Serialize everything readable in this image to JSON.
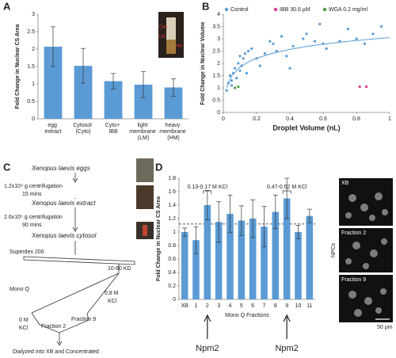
{
  "panel_labels": [
    "A",
    "B",
    "C",
    "D"
  ],
  "chart_data": [
    {
      "type": "bar",
      "ylabel": "Fold Change in Nuclear CS Area",
      "categories": [
        "egg extract",
        "Cytosol (Cyto)",
        "Cyto+ IBB",
        "light membrane (LM)",
        "heavy membrane (HM)"
      ],
      "values": [
        2.07,
        1.52,
        1.08,
        0.98,
        0.9
      ],
      "errors": [
        0.57,
        0.5,
        0.22,
        0.37,
        0.25
      ],
      "color": "#5b9bd5",
      "ylim": [
        0,
        3
      ],
      "yticks": [
        0,
        0.5,
        1,
        1.5,
        2,
        2.5,
        3
      ],
      "inset_labels": [
        "Cyto",
        "LM",
        "HM"
      ]
    },
    {
      "type": "scatter",
      "xlabel": "Droplet Volume (nL)",
      "ylabel": "Fold Change in Nuclear Volume",
      "xlim": [
        0,
        1
      ],
      "xticks": [
        0,
        0.2,
        0.4,
        0.6,
        0.8,
        1
      ],
      "ylim": [
        0,
        4
      ],
      "yticks": [
        0,
        0.5,
        1,
        1.5,
        2,
        2.5,
        3,
        3.5,
        4
      ],
      "legend": "top",
      "series": [
        {
          "name": "Control",
          "color": "#5b9bd5",
          "x": [
            0.02,
            0.03,
            0.04,
            0.05,
            0.05,
            0.06,
            0.07,
            0.08,
            0.09,
            0.1,
            0.1,
            0.11,
            0.12,
            0.13,
            0.14,
            0.15,
            0.17,
            0.2,
            0.22,
            0.25,
            0.28,
            0.3,
            0.32,
            0.35,
            0.38,
            0.4,
            0.42,
            0.48,
            0.5,
            0.55,
            0.58,
            0.6,
            0.62,
            0.7,
            0.75,
            0.8,
            0.85,
            0.9,
            0.95
          ],
          "values": [
            0.9,
            1.2,
            1.5,
            1.3,
            1.1,
            1.6,
            1.8,
            1.4,
            2.0,
            1.7,
            2.3,
            1.9,
            2.2,
            2.4,
            1.6,
            2.5,
            2.6,
            2.2,
            1.9,
            2.4,
            2.9,
            2.8,
            2.5,
            3.1,
            2.3,
            1.8,
            2.7,
            3.0,
            3.2,
            2.9,
            3.6,
            2.8,
            2.6,
            2.9,
            3.4,
            3.0,
            2.8,
            3.2,
            3.5
          ]
        },
        {
          "name": "IBB 30.6 µM",
          "color": "#d6398a",
          "x": [
            0.82,
            0.86
          ],
          "values": [
            1.05,
            1.05
          ]
        },
        {
          "name": "WGA 0.2 mg/ml",
          "color": "#4e9a3f",
          "x": [
            0.07,
            0.09
          ],
          "values": [
            1.0,
            1.05
          ]
        }
      ],
      "trendline": {
        "color": "#5b9bd5",
        "x": [
          0.02,
          0.05,
          0.1,
          0.15,
          0.2,
          0.3,
          0.4,
          0.5,
          0.6,
          0.7,
          0.8,
          0.9,
          1
        ],
        "values": [
          1.02,
          1.49,
          1.85,
          2.06,
          2.21,
          2.42,
          2.57,
          2.69,
          2.78,
          2.86,
          2.93,
          2.99,
          3.05
        ]
      }
    },
    {
      "type": "bar",
      "ylabel": "Fold Change in Nuclear CS Area",
      "xlabel": "Mono Q Fractions",
      "categories": [
        "XB",
        "1",
        "2",
        "3",
        "4",
        "5",
        "6",
        "7",
        "8",
        "9",
        "10",
        "11"
      ],
      "values": [
        1.0,
        0.88,
        1.4,
        1.15,
        1.27,
        1.17,
        1.2,
        1.08,
        1.3,
        1.5,
        1.0,
        1.24
      ],
      "errors": [
        0.06,
        0.2,
        0.22,
        0.3,
        0.28,
        0.22,
        0.28,
        0.3,
        0.25,
        0.3,
        0.1,
        0.1
      ],
      "color": "#5b9bd5",
      "ylim": [
        0,
        1.8
      ],
      "yticks": [
        0,
        0.2,
        0.4,
        0.6,
        0.8,
        1,
        1.2,
        1.4,
        1.6,
        1.8
      ],
      "reference_line": 1.12,
      "annotations": [
        "0.13-0.17 M KCl",
        "0.47-0.52 M KCl"
      ],
      "arrow_labels": [
        "Npm2",
        "Npm2"
      ]
    }
  ],
  "flowchart": {
    "eggs": "Xenopus laevis eggs",
    "spin1": "1.2x10⁴ g centrifugation",
    "time1": "15 mins",
    "extract": "Xenopus laevis extract",
    "spin2": "2.6x10⁵ g centrifugation",
    "time2": "90 mins",
    "cytosol": "Xenopus laevis cytosol",
    "superdex": "Superdex 200",
    "range": "10-60 KD",
    "monoq": "Mono Q",
    "high": "0.8 M",
    "high_unit": "KCl",
    "low": "0 M",
    "low_unit": "KCl",
    "fraction2": "Fraction 2",
    "fraction9": "Fraction 9",
    "final": "Dialyzed into XB and Concentrated"
  },
  "micrographs": {
    "side_label": "NPCs",
    "images": [
      "XB",
      "Fraction 2",
      "Fraction 9"
    ],
    "scale_bar": "50 µm"
  }
}
